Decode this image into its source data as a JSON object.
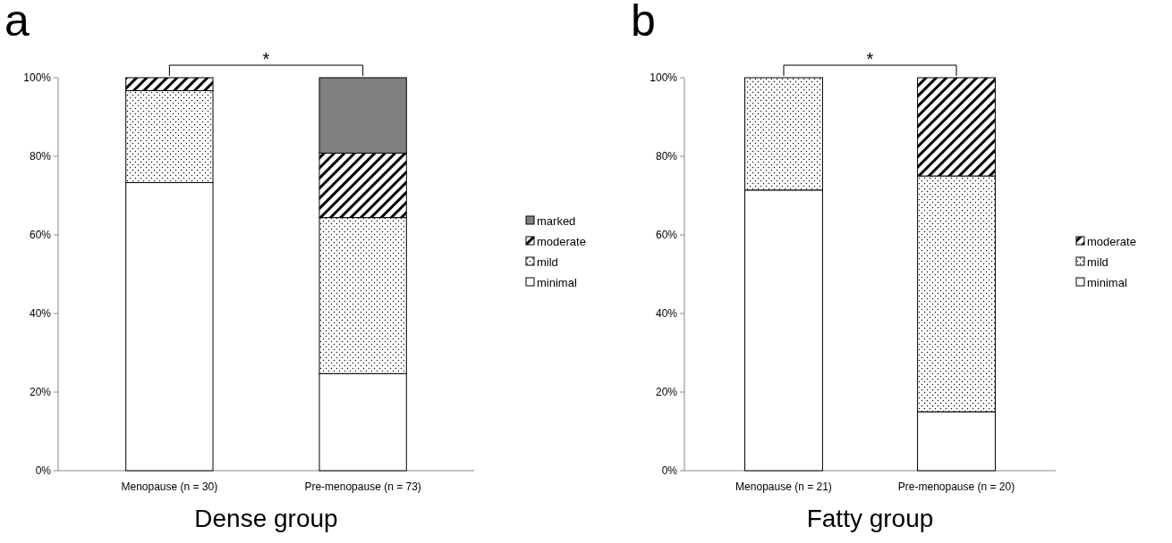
{
  "chart_data": [
    {
      "type": "bar",
      "title": "a",
      "xlabel": "Dense group",
      "categories": [
        "Menopause (n = 30)",
        "Pre-menopause (n = 73)"
      ],
      "stacked": true,
      "series": [
        {
          "name": "minimal",
          "color": "#ffffff",
          "values": [
            73.3,
            24.7
          ]
        },
        {
          "name": "mild",
          "color": "#000000",
          "values": [
            23.4,
            39.7
          ]
        },
        {
          "name": "moderate",
          "color": "#000000",
          "values": [
            3.3,
            16.4
          ]
        },
        {
          "name": "marked",
          "color": "#808080",
          "values": [
            0,
            19.2
          ]
        }
      ],
      "ylim": [
        0,
        100
      ],
      "yticks": [
        {
          "value": 0,
          "label": "0%"
        },
        {
          "value": 20,
          "label": "20%"
        },
        {
          "value": 40,
          "label": "40%"
        },
        {
          "value": 60,
          "label": "60%"
        },
        {
          "value": 80,
          "label": "80%"
        },
        {
          "value": 100,
          "label": "100%"
        }
      ],
      "legend": "right",
      "annotations": [
        "*"
      ]
    },
    {
      "type": "bar",
      "title": "b",
      "xlabel": "Fatty group",
      "categories": [
        "Menopause (n = 21)",
        "Pre-menopause (n = 20)"
      ],
      "stacked": true,
      "series": [
        {
          "name": "minimal",
          "color": "#ffffff",
          "values": [
            71.4,
            15
          ]
        },
        {
          "name": "mild",
          "color": "#000000",
          "values": [
            28.6,
            60
          ]
        },
        {
          "name": "moderate",
          "color": "#000000",
          "values": [
            0,
            25
          ]
        }
      ],
      "ylim": [
        0,
        100
      ],
      "yticks": [
        {
          "value": 0,
          "label": "0%"
        },
        {
          "value": 20,
          "label": "20%"
        },
        {
          "value": 40,
          "label": "40%"
        },
        {
          "value": 60,
          "label": "60%"
        },
        {
          "value": 80,
          "label": "80%"
        },
        {
          "value": 100,
          "label": "100%"
        }
      ],
      "legend": "right",
      "annotations": [
        "*"
      ]
    }
  ]
}
